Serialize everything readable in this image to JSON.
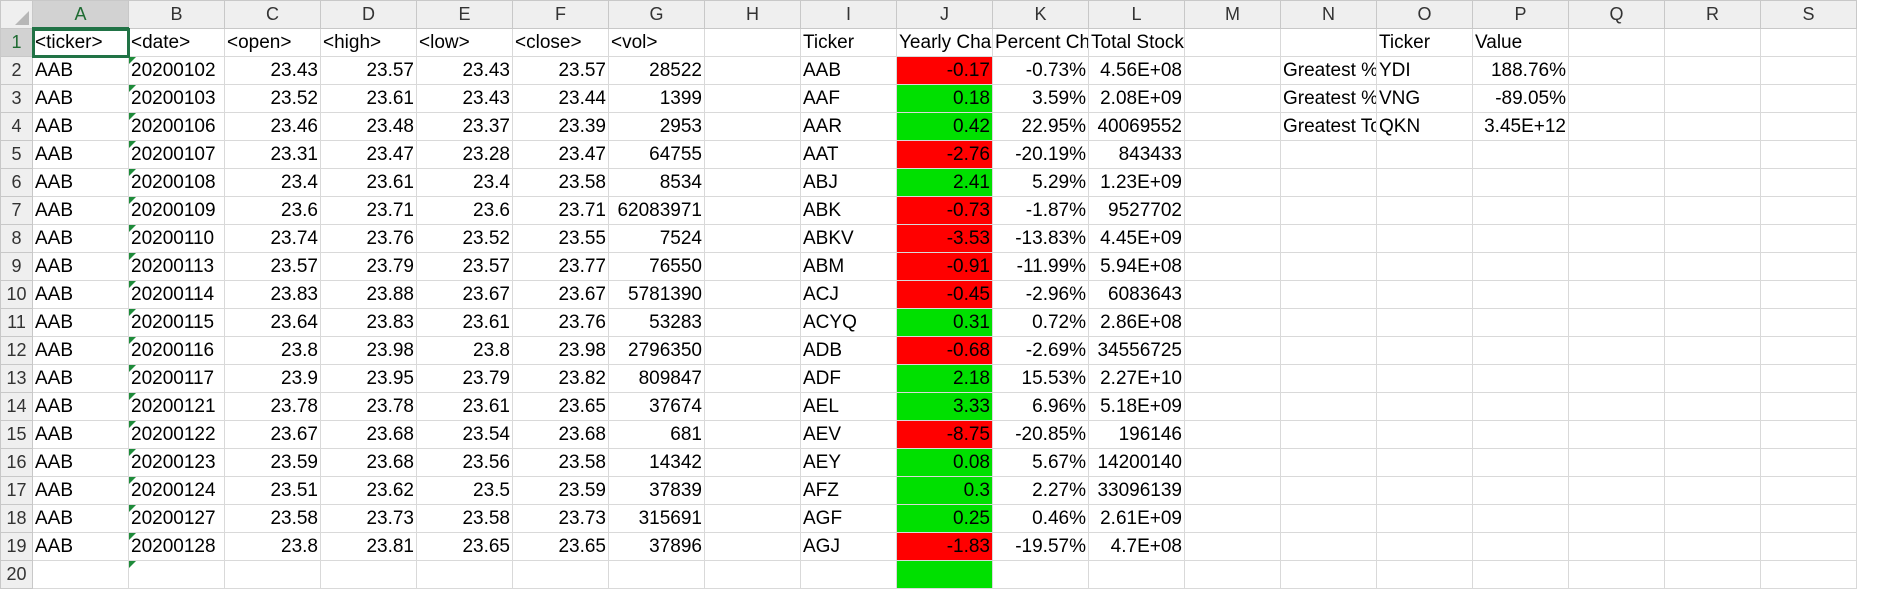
{
  "columns": [
    "A",
    "B",
    "C",
    "D",
    "E",
    "F",
    "G",
    "H",
    "I",
    "J",
    "K",
    "L",
    "M",
    "N",
    "O",
    "P",
    "Q",
    "R",
    "S"
  ],
  "selected_cell": {
    "row": 1,
    "col": "A"
  },
  "colors": {
    "negative": "#ff0000",
    "positive": "#00e000",
    "selection": "#217346"
  },
  "rows": [
    {
      "n": "1",
      "A": "<ticker>",
      "B": "<date>",
      "C": "<open>",
      "D": "<high>",
      "E": "<low>",
      "F": "<close>",
      "G": "<vol>",
      "I": "Ticker",
      "J": "Yearly Change",
      "K": "Percent Change",
      "L": "Total Stock Volume",
      "O": "Ticker",
      "P": "Value"
    },
    {
      "n": "2",
      "A": "AAB",
      "B": "20200102",
      "C": "23.43",
      "D": "23.57",
      "E": "23.43",
      "F": "23.57",
      "G": "28522",
      "I": "AAB",
      "J": "-0.17",
      "K": "-0.73%",
      "L": "4.56E+08",
      "N": "Greatest % Increase",
      "O": "YDI",
      "P": "188.76%"
    },
    {
      "n": "3",
      "A": "AAB",
      "B": "20200103",
      "C": "23.52",
      "D": "23.61",
      "E": "23.43",
      "F": "23.44",
      "G": "1399",
      "I": "AAF",
      "J": "0.18",
      "K": "3.59%",
      "L": "2.08E+09",
      "N": "Greatest % Decrease",
      "O": "VNG",
      "P": "-89.05%"
    },
    {
      "n": "4",
      "A": "AAB",
      "B": "20200106",
      "C": "23.46",
      "D": "23.48",
      "E": "23.37",
      "F": "23.39",
      "G": "2953",
      "I": "AAR",
      "J": "0.42",
      "K": "22.95%",
      "L": "40069552",
      "N": "Greatest Total Volume",
      "O": "QKN",
      "P": "3.45E+12"
    },
    {
      "n": "5",
      "A": "AAB",
      "B": "20200107",
      "C": "23.31",
      "D": "23.47",
      "E": "23.28",
      "F": "23.47",
      "G": "64755",
      "I": "AAT",
      "J": "-2.76",
      "K": "-20.19%",
      "L": "843433"
    },
    {
      "n": "6",
      "A": "AAB",
      "B": "20200108",
      "C": "23.4",
      "D": "23.61",
      "E": "23.4",
      "F": "23.58",
      "G": "8534",
      "I": "ABJ",
      "J": "2.41",
      "K": "5.29%",
      "L": "1.23E+09"
    },
    {
      "n": "7",
      "A": "AAB",
      "B": "20200109",
      "C": "23.6",
      "D": "23.71",
      "E": "23.6",
      "F": "23.71",
      "G": "62083971",
      "I": "ABK",
      "J": "-0.73",
      "K": "-1.87%",
      "L": "9527702"
    },
    {
      "n": "8",
      "A": "AAB",
      "B": "20200110",
      "C": "23.74",
      "D": "23.76",
      "E": "23.52",
      "F": "23.55",
      "G": "7524",
      "I": "ABKV",
      "J": "-3.53",
      "K": "-13.83%",
      "L": "4.45E+09"
    },
    {
      "n": "9",
      "A": "AAB",
      "B": "20200113",
      "C": "23.57",
      "D": "23.79",
      "E": "23.57",
      "F": "23.77",
      "G": "76550",
      "I": "ABM",
      "J": "-0.91",
      "K": "-11.99%",
      "L": "5.94E+08"
    },
    {
      "n": "10",
      "A": "AAB",
      "B": "20200114",
      "C": "23.83",
      "D": "23.88",
      "E": "23.67",
      "F": "23.67",
      "G": "5781390",
      "I": "ACJ",
      "J": "-0.45",
      "K": "-2.96%",
      "L": "6083643"
    },
    {
      "n": "11",
      "A": "AAB",
      "B": "20200115",
      "C": "23.64",
      "D": "23.83",
      "E": "23.61",
      "F": "23.76",
      "G": "53283",
      "I": "ACYQ",
      "J": "0.31",
      "K": "0.72%",
      "L": "2.86E+08"
    },
    {
      "n": "12",
      "A": "AAB",
      "B": "20200116",
      "C": "23.8",
      "D": "23.98",
      "E": "23.8",
      "F": "23.98",
      "G": "2796350",
      "I": "ADB",
      "J": "-0.68",
      "K": "-2.69%",
      "L": "34556725"
    },
    {
      "n": "13",
      "A": "AAB",
      "B": "20200117",
      "C": "23.9",
      "D": "23.95",
      "E": "23.79",
      "F": "23.82",
      "G": "809847",
      "I": "ADF",
      "J": "2.18",
      "K": "15.53%",
      "L": "2.27E+10"
    },
    {
      "n": "14",
      "A": "AAB",
      "B": "20200121",
      "C": "23.78",
      "D": "23.78",
      "E": "23.61",
      "F": "23.65",
      "G": "37674",
      "I": "AEL",
      "J": "3.33",
      "K": "6.96%",
      "L": "5.18E+09"
    },
    {
      "n": "15",
      "A": "AAB",
      "B": "20200122",
      "C": "23.67",
      "D": "23.68",
      "E": "23.54",
      "F": "23.68",
      "G": "681",
      "I": "AEV",
      "J": "-8.75",
      "K": "-20.85%",
      "L": "196146"
    },
    {
      "n": "16",
      "A": "AAB",
      "B": "20200123",
      "C": "23.59",
      "D": "23.68",
      "E": "23.56",
      "F": "23.58",
      "G": "14342",
      "I": "AEY",
      "J": "0.08",
      "K": "5.67%",
      "L": "14200140"
    },
    {
      "n": "17",
      "A": "AAB",
      "B": "20200124",
      "C": "23.51",
      "D": "23.62",
      "E": "23.5",
      "F": "23.59",
      "G": "37839",
      "I": "AFZ",
      "J": "0.3",
      "K": "2.27%",
      "L": "33096139"
    },
    {
      "n": "18",
      "A": "AAB",
      "B": "20200127",
      "C": "23.58",
      "D": "23.73",
      "E": "23.58",
      "F": "23.73",
      "G": "315691",
      "I": "AGF",
      "J": "0.25",
      "K": "0.46%",
      "L": "2.61E+09"
    },
    {
      "n": "19",
      "A": "AAB",
      "B": "20200128",
      "C": "23.8",
      "D": "23.81",
      "E": "23.65",
      "F": "23.65",
      "G": "37896",
      "I": "AGJ",
      "J": "-1.83",
      "K": "-19.57%",
      "L": "4.7E+08"
    },
    {
      "n": "20",
      "A": "",
      "B": "",
      "I": "",
      "J": "positive"
    }
  ]
}
